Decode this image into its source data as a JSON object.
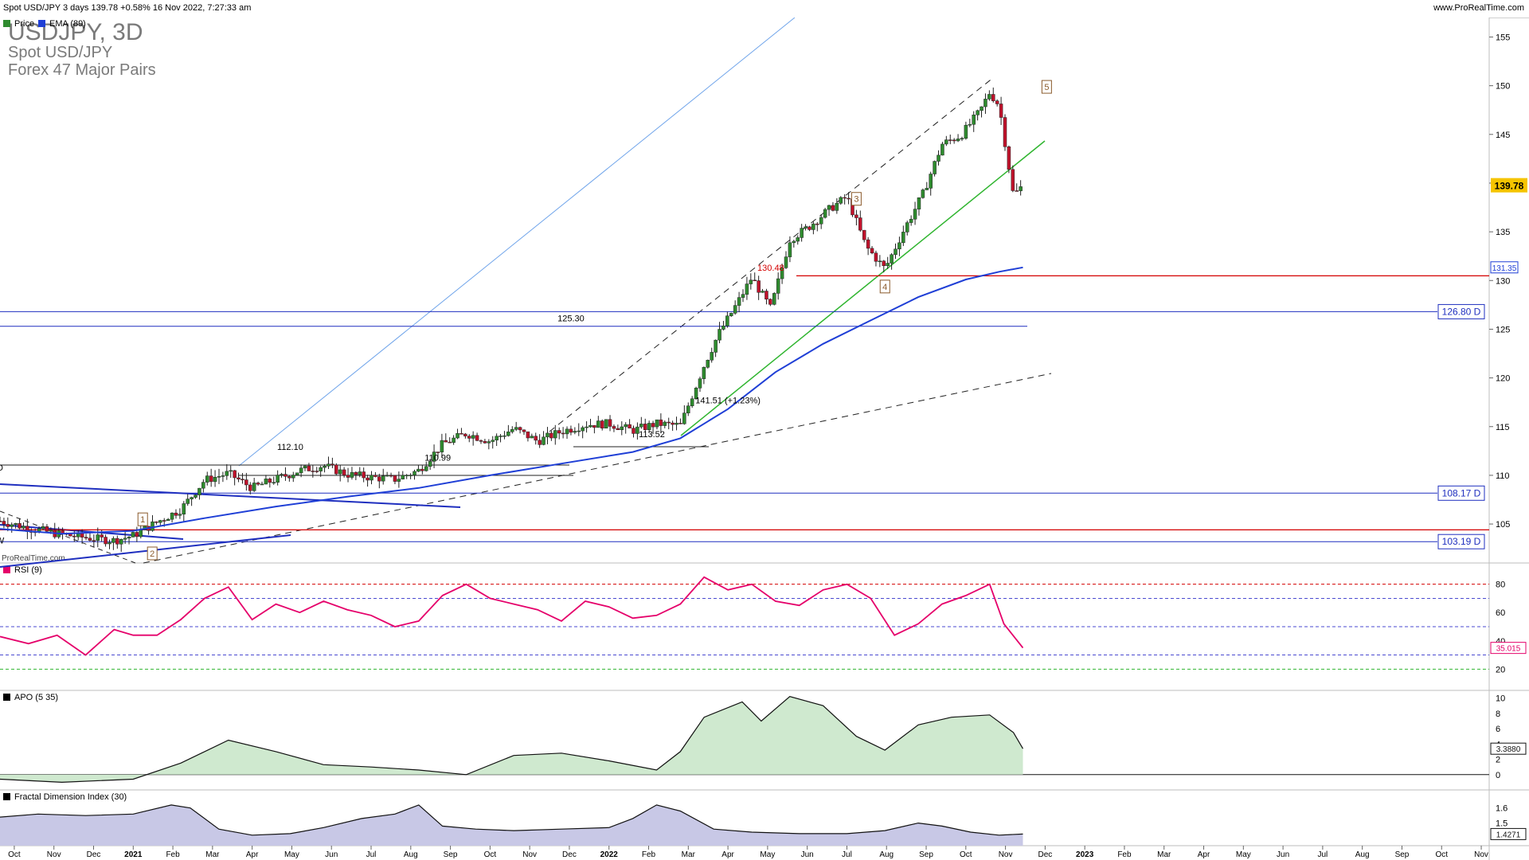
{
  "header": {
    "title": "Spot USD/JPY 3 days 139.78 +0.58% 16 Nov 2022, 7:27:33 am",
    "site": "www.ProRealTime.com"
  },
  "watermark": {
    "symbol": "USDJPY, 3D",
    "name": "Spot USD/JPY",
    "group": "Forex 47 Major Pairs",
    "brand": "ProRealTime.com"
  },
  "colors": {
    "up": "#2e8b2e",
    "down": "#c0122b",
    "ema": "#1f3fd6",
    "rsi": "#e5006a",
    "apo_fill": "#cfe9cf",
    "fdi_fill": "#c8c8e6",
    "support_red": "#d40000",
    "level_blue": "#1f2fbf",
    "trend_green": "#2fb52f",
    "price_tag": "#f5c400"
  },
  "chart_data": [
    {
      "panel": "price",
      "type": "line",
      "legend": [
        "Price",
        "EMA (89)"
      ],
      "ylim": [
        101,
        157
      ],
      "y_ticks": [
        105,
        110,
        115,
        120,
        125,
        130,
        135,
        140,
        145,
        150,
        155
      ],
      "x_labels": [
        "Oct",
        "Nov",
        "Dec",
        "2021",
        "Feb",
        "Mar",
        "Apr",
        "May",
        "Jun",
        "Jul",
        "Aug",
        "Sep",
        "Oct",
        "Nov",
        "Dec",
        "2022",
        "Feb",
        "Mar",
        "Apr",
        "May",
        "Jun",
        "Jul",
        "Aug",
        "Sep",
        "Oct",
        "Nov",
        "Dec",
        "2023",
        "Feb",
        "Mar",
        "Apr",
        "May",
        "Jun",
        "Jul",
        "Aug",
        "Sep",
        "Oct",
        "Nov"
      ],
      "x_range": [
        2020.72,
        2023.85
      ],
      "last_price": "139.78",
      "ema_last": "131.35",
      "series": [
        {
          "name": "Price",
          "x": [
            2020.72,
            2020.78,
            2020.84,
            2020.9,
            2020.96,
            2021.0,
            2021.05,
            2021.1,
            2021.15,
            2021.2,
            2021.25,
            2021.3,
            2021.35,
            2021.4,
            2021.45,
            2021.5,
            2021.55,
            2021.6,
            2021.65,
            2021.7,
            2021.75,
            2021.8,
            2021.85,
            2021.9,
            2021.95,
            2022.0,
            2022.05,
            2022.1,
            2022.15,
            2022.2,
            2022.23,
            2022.27,
            2022.3,
            2022.34,
            2022.38,
            2022.42,
            2022.46,
            2022.5,
            2022.54,
            2022.58,
            2022.62,
            2022.66,
            2022.7,
            2022.74,
            2022.78,
            2022.8,
            2022.82,
            2022.85,
            2022.87
          ],
          "values": [
            105.3,
            104.6,
            104.0,
            103.6,
            103.3,
            103.8,
            105.2,
            106.5,
            109.5,
            110.2,
            108.7,
            109.6,
            110.5,
            111.0,
            110.1,
            109.8,
            109.6,
            110.5,
            113.2,
            114.3,
            113.5,
            114.8,
            113.5,
            114.5,
            115.2,
            115.3,
            114.6,
            115.3,
            115.1,
            121.3,
            124.5,
            127.7,
            130.3,
            127.1,
            134.2,
            135.5,
            137.2,
            138.6,
            133.5,
            131.2,
            135.2,
            138.9,
            144.0,
            144.9,
            147.4,
            149.3,
            148.0,
            138.7,
            139.78
          ]
        },
        {
          "name": "EMA (89)",
          "x": [
            2020.72,
            2020.85,
            2021.0,
            2021.15,
            2021.3,
            2021.45,
            2021.6,
            2021.75,
            2021.9,
            2022.05,
            2022.15,
            2022.25,
            2022.35,
            2022.45,
            2022.55,
            2022.65,
            2022.75,
            2022.82,
            2022.87
          ],
          "values": [
            104.5,
            104.0,
            104.3,
            105.6,
            106.8,
            107.8,
            108.7,
            110.0,
            111.2,
            112.4,
            113.8,
            116.8,
            120.6,
            123.5,
            125.9,
            128.3,
            130.1,
            130.9,
            131.35
          ]
        }
      ],
      "annotations": [
        {
          "text": "1",
          "x": 2021.02,
          "y": 105.4
        },
        {
          "text": "2",
          "x": 2021.04,
          "y": 101.9
        },
        {
          "text": "3",
          "x": 2022.52,
          "y": 138.3
        },
        {
          "text": "4",
          "x": 2022.58,
          "y": 129.3
        },
        {
          "text": "5",
          "x": 2022.92,
          "y": 149.8
        },
        {
          "text": "112.10",
          "x": 2021.33,
          "y": 112.6
        },
        {
          "text": "110.99",
          "x": 2021.64,
          "y": 111.5
        },
        {
          "text": "125.30",
          "x": 2021.92,
          "y": 125.8
        },
        {
          "text": "130.48",
          "x": 2022.34,
          "y": 131.0
        },
        {
          "text": "113.52",
          "x": 2022.09,
          "y": 113.9
        },
        {
          "text": "141.51 (+1.23%)",
          "x": 2022.25,
          "y": 117.4
        },
        {
          "text": "D",
          "x": 2020.72,
          "y": 110.5
        },
        {
          "text": "W",
          "x": 2020.72,
          "y": 103.0
        }
      ],
      "levels": [
        {
          "label": "126.80 D",
          "value": 126.8
        },
        {
          "label": "108.17 D",
          "value": 108.17
        },
        {
          "label": "103.19 D",
          "value": 103.19
        }
      ],
      "support_line": 130.48
    },
    {
      "panel": "rsi",
      "type": "line",
      "title": "RSI (9)",
      "ylim": [
        5,
        95
      ],
      "y_ticks": [
        20,
        40,
        60,
        80
      ],
      "last_value": "35.015",
      "x": [
        2020.72,
        2020.78,
        2020.84,
        2020.9,
        2020.96,
        2021.0,
        2021.05,
        2021.1,
        2021.15,
        2021.2,
        2021.25,
        2021.3,
        2021.35,
        2021.4,
        2021.45,
        2021.5,
        2021.55,
        2021.6,
        2021.65,
        2021.7,
        2021.75,
        2021.8,
        2021.85,
        2021.9,
        2021.95,
        2022.0,
        2022.05,
        2022.1,
        2022.15,
        2022.2,
        2022.25,
        2022.3,
        2022.35,
        2022.4,
        2022.45,
        2022.5,
        2022.55,
        2022.6,
        2022.65,
        2022.7,
        2022.75,
        2022.8,
        2022.83,
        2022.87
      ],
      "values": [
        43,
        38,
        44,
        30,
        48,
        44,
        44,
        55,
        70,
        78,
        55,
        66,
        60,
        68,
        62,
        58,
        50,
        54,
        72,
        80,
        70,
        66,
        62,
        54,
        68,
        64,
        56,
        58,
        66,
        85,
        76,
        80,
        68,
        65,
        76,
        80,
        70,
        44,
        52,
        66,
        72,
        80,
        52,
        35.015
      ]
    },
    {
      "panel": "apo",
      "type": "area",
      "title": "APO (5 35)",
      "ylim": [
        -2,
        11
      ],
      "y_ticks": [
        0,
        2,
        4,
        6,
        8,
        10
      ],
      "last_value": "3.3880",
      "x": [
        2020.72,
        2020.85,
        2021.0,
        2021.1,
        2021.2,
        2021.3,
        2021.4,
        2021.5,
        2021.6,
        2021.7,
        2021.8,
        2021.9,
        2022.0,
        2022.1,
        2022.15,
        2022.2,
        2022.28,
        2022.32,
        2022.38,
        2022.45,
        2022.52,
        2022.58,
        2022.65,
        2022.72,
        2022.8,
        2022.85,
        2022.87
      ],
      "values": [
        -0.6,
        -1.0,
        -0.6,
        1.5,
        4.5,
        3.0,
        1.3,
        1.0,
        0.6,
        0.0,
        2.5,
        2.8,
        1.8,
        0.6,
        3.0,
        7.5,
        9.5,
        7.0,
        10.2,
        9.0,
        5.0,
        3.2,
        6.5,
        7.5,
        7.8,
        5.5,
        3.388
      ]
    },
    {
      "panel": "fdi",
      "type": "area",
      "title": "Fractal Dimension Index (30)",
      "ylim": [
        1.35,
        1.72
      ],
      "y_ticks": [
        1.5,
        1.6
      ],
      "last_value": "1.4271",
      "x": [
        2020.72,
        2020.8,
        2020.9,
        2021.0,
        2021.08,
        2021.12,
        2021.18,
        2021.25,
        2021.33,
        2021.4,
        2021.48,
        2021.55,
        2021.6,
        2021.65,
        2021.72,
        2021.8,
        2021.9,
        2022.0,
        2022.05,
        2022.1,
        2022.15,
        2022.22,
        2022.3,
        2022.4,
        2022.5,
        2022.58,
        2022.65,
        2022.7,
        2022.76,
        2022.82,
        2022.87
      ],
      "values": [
        1.54,
        1.56,
        1.55,
        1.56,
        1.62,
        1.6,
        1.46,
        1.42,
        1.43,
        1.47,
        1.53,
        1.56,
        1.62,
        1.48,
        1.46,
        1.45,
        1.46,
        1.47,
        1.53,
        1.62,
        1.58,
        1.46,
        1.44,
        1.43,
        1.43,
        1.45,
        1.5,
        1.48,
        1.44,
        1.42,
        1.4271
      ]
    }
  ]
}
